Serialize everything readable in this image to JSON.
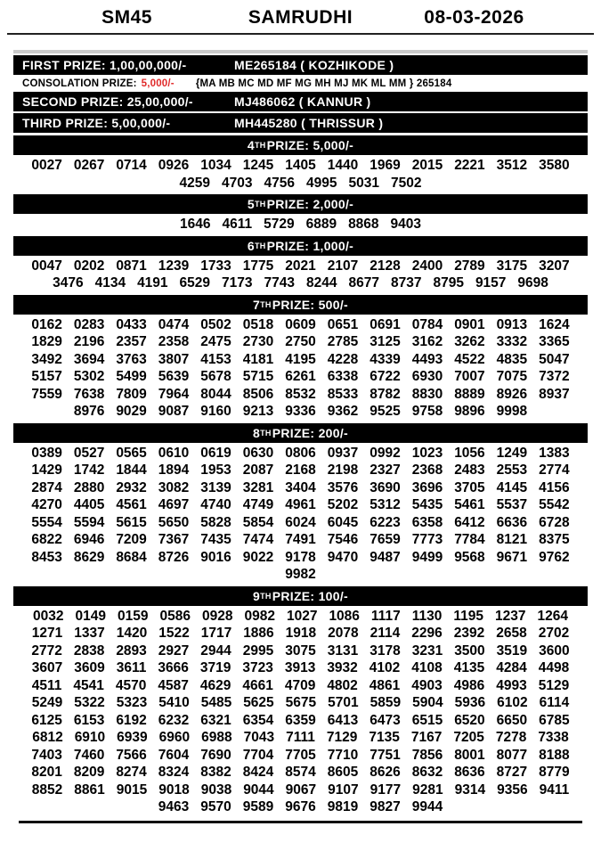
{
  "header": {
    "code": "SM45",
    "title": "SAMRUDHI",
    "date": "08-03-2026"
  },
  "top_prizes": [
    {
      "label": "FIRST PRIZE: 1,00,00,000/-",
      "winner": "ME265184 ( KOZHIKODE )"
    },
    {
      "label": "SECOND PRIZE: 25,00,000/-",
      "winner": "MJ486062 ( KANNUR )"
    },
    {
      "label": "THIRD PRIZE: 5,00,000/-",
      "winner": "MH445280 ( THRISSUR )"
    }
  ],
  "consolation": {
    "label": "CONSOLATION PRIZE:",
    "amount": "5,000/-",
    "amount_color": "#e02a2a",
    "series": "{MA MB MC MD MF MG MH MJ MK ML MM } 265184"
  },
  "columns_per_row": 13,
  "prize_sections": [
    {
      "ordinal": "4",
      "suffix": "TH",
      "rest": " PRIZE: 5,000/-",
      "numbers": [
        "0027",
        "0267",
        "0714",
        "0926",
        "1034",
        "1245",
        "1405",
        "1440",
        "1969",
        "2015",
        "2221",
        "3512",
        "3580",
        "4259",
        "4703",
        "4756",
        "4995",
        "5031",
        "7502"
      ]
    },
    {
      "ordinal": "5",
      "suffix": "TH",
      "rest": " PRIZE: 2,000/-",
      "numbers": [
        "1646",
        "4611",
        "5729",
        "6889",
        "8868",
        "9403"
      ]
    },
    {
      "ordinal": "6",
      "suffix": "TH",
      "rest": " PRIZE: 1,000/-",
      "numbers": [
        "0047",
        "0202",
        "0871",
        "1239",
        "1733",
        "1775",
        "2021",
        "2107",
        "2128",
        "2400",
        "2789",
        "3175",
        "3207",
        "3476",
        "4134",
        "4191",
        "6529",
        "7173",
        "7743",
        "8244",
        "8677",
        "8737",
        "8795",
        "9157",
        "9698"
      ]
    },
    {
      "ordinal": "7",
      "suffix": "TH",
      "rest": " PRIZE: 500/-",
      "numbers": [
        "0162",
        "0283",
        "0433",
        "0474",
        "0502",
        "0518",
        "0609",
        "0651",
        "0691",
        "0784",
        "0901",
        "0913",
        "1624",
        "1829",
        "2196",
        "2357",
        "2358",
        "2475",
        "2730",
        "2750",
        "2785",
        "3125",
        "3162",
        "3262",
        "3332",
        "3365",
        "3492",
        "3694",
        "3763",
        "3807",
        "4153",
        "4181",
        "4195",
        "4228",
        "4339",
        "4493",
        "4522",
        "4835",
        "5047",
        "5157",
        "5302",
        "5499",
        "5639",
        "5678",
        "5715",
        "6261",
        "6338",
        "6722",
        "6930",
        "7007",
        "7075",
        "7372",
        "7559",
        "7638",
        "7809",
        "7964",
        "8044",
        "8506",
        "8532",
        "8533",
        "8782",
        "8830",
        "8889",
        "8926",
        "8937",
        "8976",
        "9029",
        "9087",
        "9160",
        "9213",
        "9336",
        "9362",
        "9525",
        "9758",
        "9896",
        "9998"
      ]
    },
    {
      "ordinal": "8",
      "suffix": "TH",
      "rest": " PRIZE: 200/-",
      "numbers": [
        "0389",
        "0527",
        "0565",
        "0610",
        "0619",
        "0630",
        "0806",
        "0937",
        "0992",
        "1023",
        "1056",
        "1249",
        "1383",
        "1429",
        "1742",
        "1844",
        "1894",
        "1953",
        "2087",
        "2168",
        "2198",
        "2327",
        "2368",
        "2483",
        "2553",
        "2774",
        "2874",
        "2880",
        "2932",
        "3082",
        "3139",
        "3281",
        "3404",
        "3576",
        "3690",
        "3696",
        "3705",
        "4145",
        "4156",
        "4270",
        "4405",
        "4561",
        "4697",
        "4740",
        "4749",
        "4961",
        "5202",
        "5312",
        "5435",
        "5461",
        "5537",
        "5542",
        "5554",
        "5594",
        "5615",
        "5650",
        "5828",
        "5854",
        "6024",
        "6045",
        "6223",
        "6358",
        "6412",
        "6636",
        "6728",
        "6822",
        "6946",
        "7209",
        "7367",
        "7435",
        "7474",
        "7491",
        "7546",
        "7659",
        "7773",
        "7784",
        "8121",
        "8375",
        "8453",
        "8629",
        "8684",
        "8726",
        "9016",
        "9022",
        "9178",
        "9470",
        "9487",
        "9499",
        "9568",
        "9671",
        "9762",
        "9982"
      ]
    },
    {
      "ordinal": "9",
      "suffix": "TH",
      "rest": " PRIZE: 100/-",
      "numbers": [
        "0032",
        "0149",
        "0159",
        "0586",
        "0928",
        "0982",
        "1027",
        "1086",
        "1117",
        "1130",
        "1195",
        "1237",
        "1264",
        "1271",
        "1337",
        "1420",
        "1522",
        "1717",
        "1886",
        "1918",
        "2078",
        "2114",
        "2296",
        "2392",
        "2658",
        "2702",
        "2772",
        "2838",
        "2893",
        "2927",
        "2944",
        "2995",
        "3075",
        "3131",
        "3178",
        "3231",
        "3500",
        "3519",
        "3600",
        "3607",
        "3609",
        "3611",
        "3666",
        "3719",
        "3723",
        "3913",
        "3932",
        "4102",
        "4108",
        "4135",
        "4284",
        "4498",
        "4511",
        "4541",
        "4570",
        "4587",
        "4629",
        "4661",
        "4709",
        "4802",
        "4861",
        "4903",
        "4986",
        "4993",
        "5129",
        "5249",
        "5322",
        "5323",
        "5410",
        "5485",
        "5625",
        "5675",
        "5701",
        "5859",
        "5904",
        "5936",
        "6102",
        "6114",
        "6125",
        "6153",
        "6192",
        "6232",
        "6321",
        "6354",
        "6359",
        "6413",
        "6473",
        "6515",
        "6520",
        "6650",
        "6785",
        "6812",
        "6910",
        "6939",
        "6960",
        "6988",
        "7043",
        "7111",
        "7129",
        "7135",
        "7167",
        "7205",
        "7278",
        "7338",
        "7403",
        "7460",
        "7566",
        "7604",
        "7690",
        "7704",
        "7705",
        "7710",
        "7751",
        "7856",
        "8001",
        "8077",
        "8188",
        "8201",
        "8209",
        "8274",
        "8324",
        "8382",
        "8424",
        "8574",
        "8605",
        "8626",
        "8632",
        "8636",
        "8727",
        "8779",
        "8852",
        "8861",
        "9015",
        "9018",
        "9038",
        "9044",
        "9067",
        "9107",
        "9177",
        "9281",
        "9314",
        "9356",
        "9411",
        "9463",
        "9570",
        "9589",
        "9676",
        "9819",
        "9827",
        "9944"
      ]
    }
  ]
}
